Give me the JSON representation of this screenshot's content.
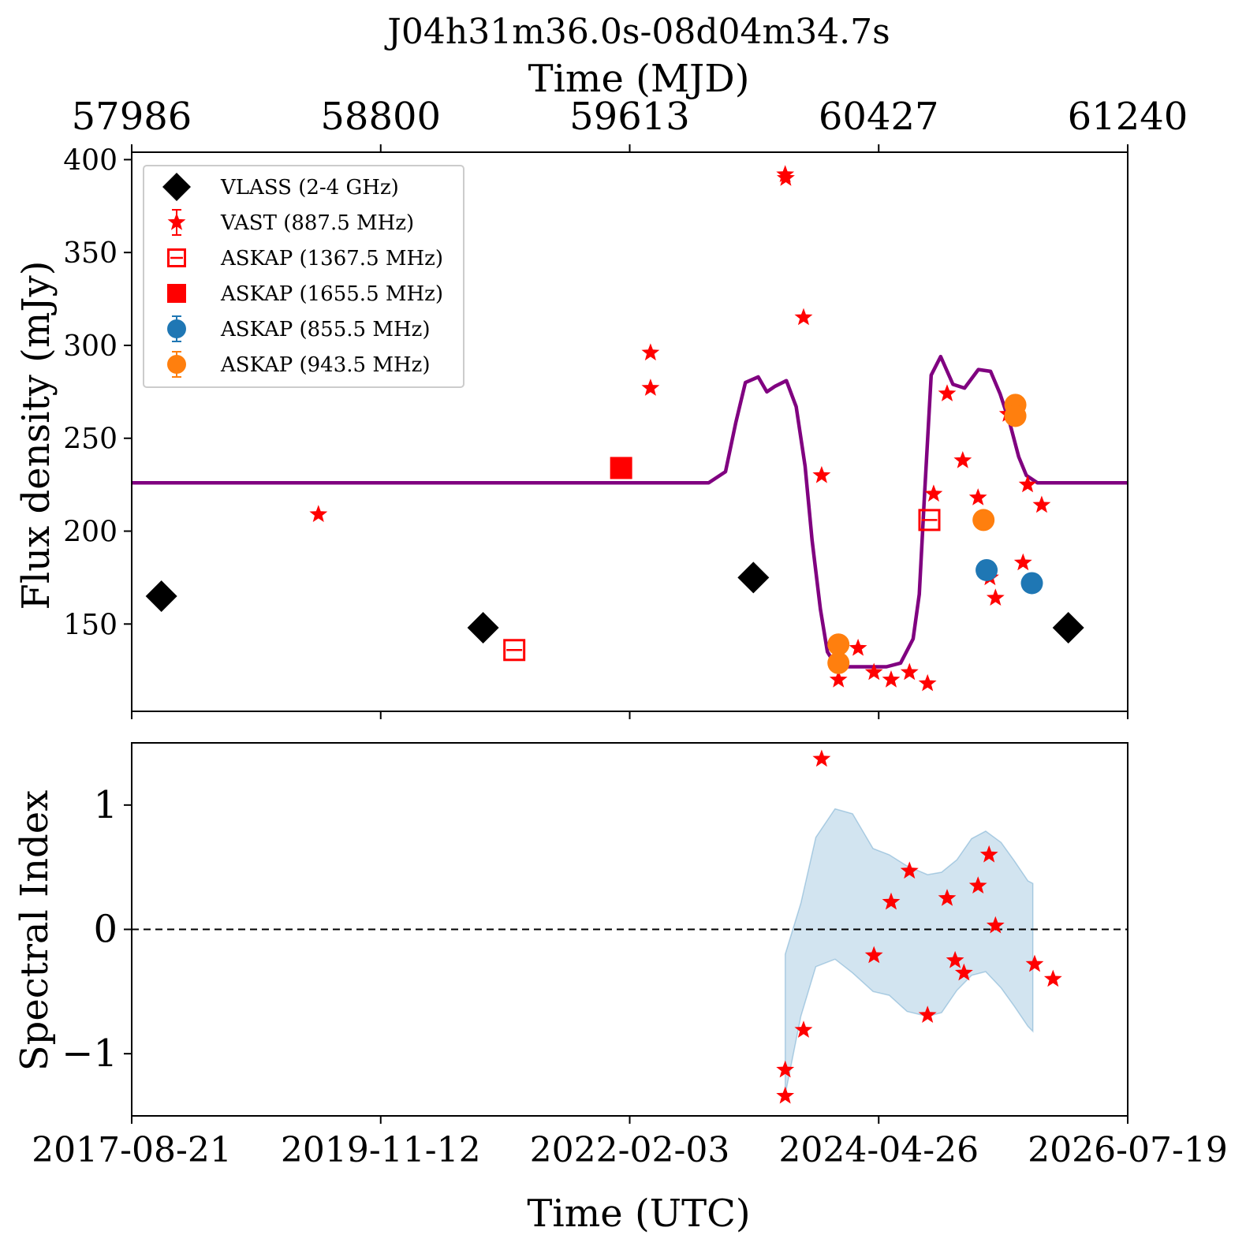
{
  "chart_data": {
    "title": "J04h31m36.0s-08d04m34.7s",
    "top_axis": {
      "label": "Time (MJD)",
      "ticks": [
        "57986",
        "58800",
        "59613",
        "60427",
        "61240"
      ]
    },
    "bottom_axis": {
      "label": "Time (UTC)",
      "ticks": [
        "2017-08-21",
        "2019-11-12",
        "2022-02-03",
        "2024-04-26",
        "2026-07-19"
      ]
    },
    "xlim_mjd": [
      57986,
      61240
    ],
    "panels": [
      {
        "type": "scatter",
        "ylabel": "Flux density (mJy)",
        "ylim": [
          103,
          404
        ],
        "yticks": [
          150,
          200,
          250,
          300,
          350,
          400
        ],
        "legend_position": "top-left",
        "series": [
          {
            "name": "VLASS (2-4 GHz)",
            "marker": "diamond",
            "color": "#000000",
            "filled": true,
            "x": [
              58083,
              59134,
              60017,
              61046
            ],
            "y": [
              165,
              148,
              175,
              148
            ]
          },
          {
            "name": "VAST (887.5 MHz)",
            "marker": "star",
            "color": "#ff0000",
            "filled": true,
            "x": [
              58596,
              59681,
              59681,
              60121,
              60123,
              60181,
              60240,
              60295,
              60359,
              60411,
              60467,
              60527,
              60586,
              60606,
              60650,
              60701,
              60751,
              60790,
              60808,
              60849,
              60898,
              60913,
              60959
            ],
            "y": [
              209,
              296,
              277,
              392,
              390,
              315,
              230,
              120,
              137,
              124,
              120,
              124,
              118,
              220,
              274,
              238,
              218,
              175,
              164,
              263,
              183,
              225,
              214
            ]
          },
          {
            "name": "ASKAP (1367.5 MHz)",
            "marker": "square",
            "color": "#ff0000",
            "filled": false,
            "x": [
              59236,
              60592
            ],
            "y": [
              136,
              206
            ]
          },
          {
            "name": "ASKAP (1655.5 MHz)",
            "marker": "square",
            "color": "#ff0000",
            "filled": true,
            "x": [
              59585
            ],
            "y": [
              234
            ]
          },
          {
            "name": "ASKAP (855.5 MHz)",
            "marker": "circle",
            "color": "#1f77b4",
            "filled": true,
            "x": [
              60779,
              60927
            ],
            "y": [
              179,
              172
            ]
          },
          {
            "name": "ASKAP (943.5 MHz)",
            "marker": "circle",
            "color": "#ff7f0e",
            "filled": true,
            "x": [
              60295,
              60295,
              60769,
              60873,
              60873
            ],
            "y": [
              139,
              129,
              206,
              268,
              262
            ]
          }
        ],
        "model_curve": {
          "color": "#800080",
          "x": [
            57986,
            59871,
            59926,
            59959,
            59991,
            60033,
            60061,
            60088,
            60125,
            60157,
            60186,
            60209,
            60236,
            60259,
            60281,
            60303,
            60336,
            60390,
            60452,
            60498,
            60539,
            60559,
            60575,
            60598,
            60629,
            60669,
            60707,
            60752,
            60792,
            60823,
            60855,
            60884,
            60909,
            60945,
            60994,
            61240
          ],
          "y": [
            226,
            226,
            232,
            258,
            280,
            283,
            275,
            278,
            281,
            267,
            235,
            195,
            158,
            135,
            129,
            127,
            127,
            127,
            127,
            129,
            142,
            166,
            216,
            284,
            294,
            279,
            277,
            287,
            286,
            274,
            258,
            240,
            230,
            226,
            226,
            226
          ]
        }
      },
      {
        "type": "scatter",
        "ylabel": "Spectral Index",
        "ylim": [
          -1.5,
          1.5
        ],
        "yticks": [
          "-1",
          "0",
          "1"
        ],
        "reference_line": {
          "y": 0,
          "style": "dashed"
        },
        "band": {
          "color": "#1f77b4",
          "x": [
            60121,
            60172,
            60221,
            60284,
            60341,
            60408,
            60461,
            60519,
            60586,
            60632,
            60682,
            60730,
            60776,
            60826,
            60870,
            60914,
            60930
          ],
          "upper": [
            -0.2,
            0.21,
            0.74,
            0.97,
            0.93,
            0.65,
            0.6,
            0.51,
            0.44,
            0.46,
            0.56,
            0.73,
            0.79,
            0.7,
            0.55,
            0.39,
            0.37
          ],
          "lower": [
            -1.33,
            -0.7,
            -0.3,
            -0.24,
            -0.35,
            -0.5,
            -0.53,
            -0.66,
            -0.7,
            -0.67,
            -0.49,
            -0.37,
            -0.34,
            -0.47,
            -0.62,
            -0.78,
            -0.82
          ]
        },
        "series": [
          {
            "marker": "star",
            "color": "#ff0000",
            "filled": true,
            "x": [
              60121,
              60121,
              60181,
              60240,
              60411,
              60467,
              60527,
              60586,
              60650,
              60676,
              60705,
              60751,
              60787,
              60808,
              60936,
              60996
            ],
            "y": [
              -1.13,
              -1.34,
              -0.81,
              1.37,
              -0.21,
              0.22,
              0.47,
              -0.69,
              0.25,
              -0.25,
              -0.35,
              0.35,
              0.6,
              0.03,
              -0.28,
              -0.4
            ]
          }
        ]
      }
    ]
  }
}
